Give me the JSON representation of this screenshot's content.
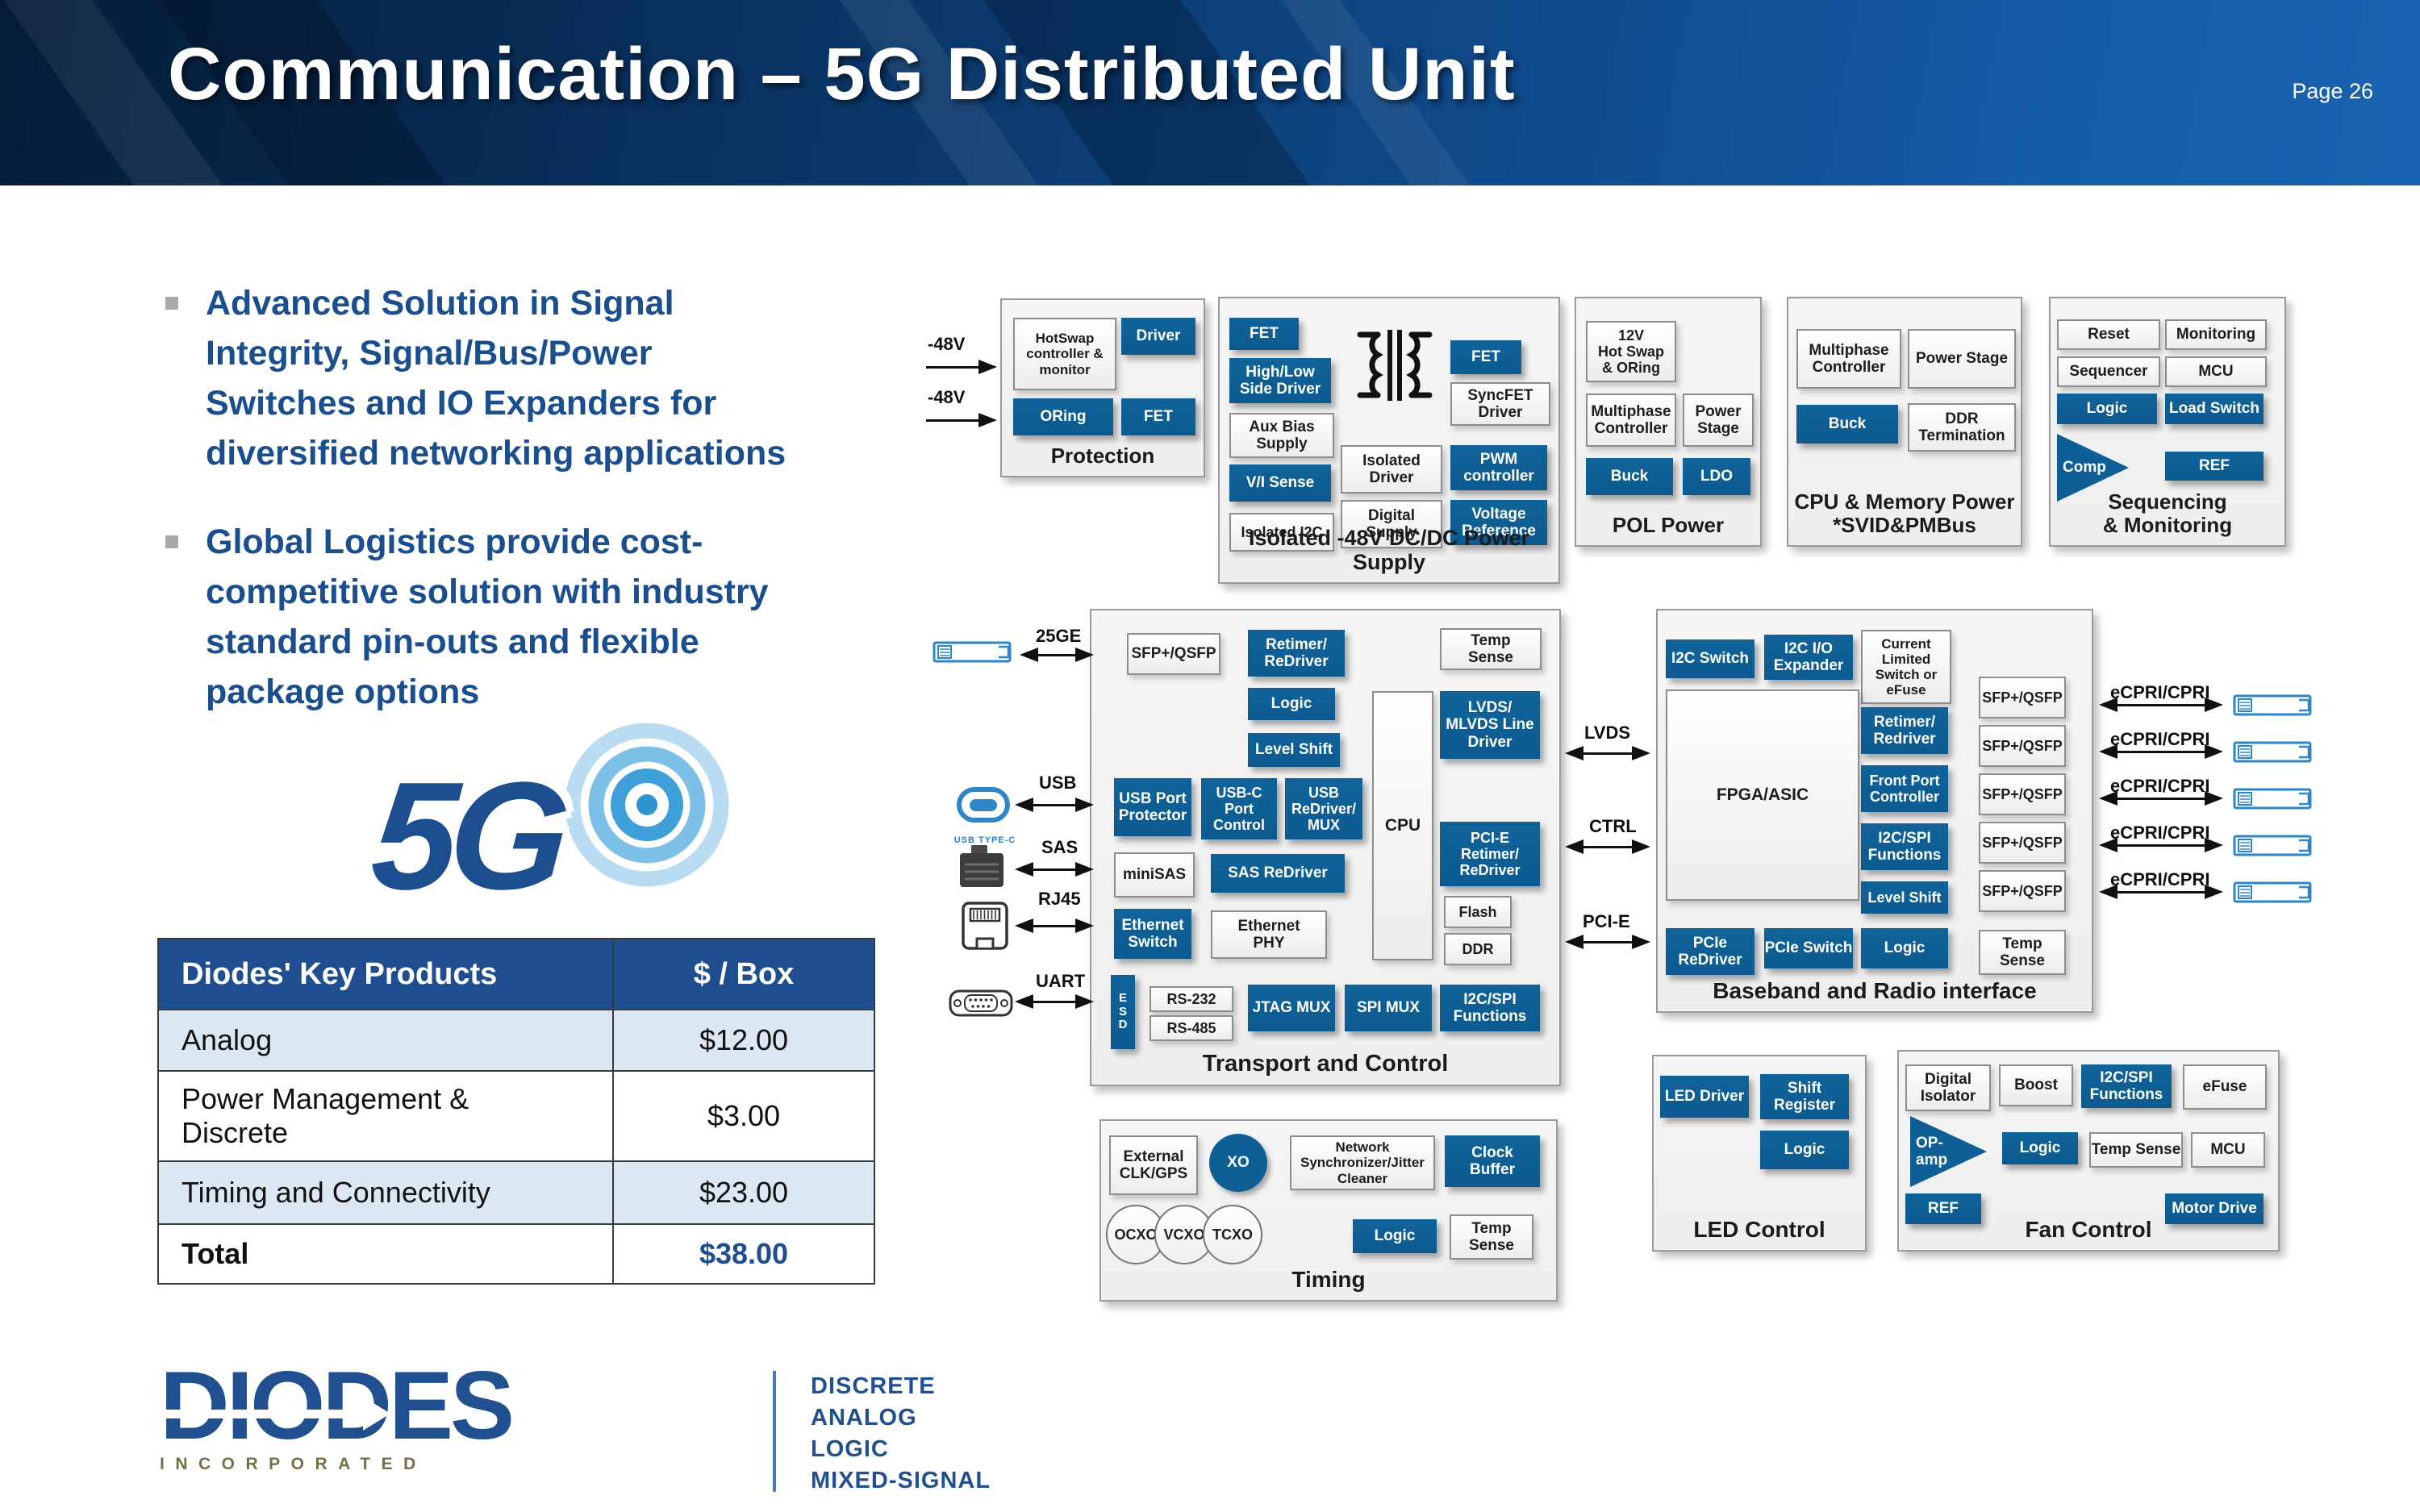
{
  "page": {
    "title": "Communication – 5G Distributed Unit",
    "page_label": "Page 26"
  },
  "bullets": [
    "Advanced Solution in Signal\nIntegrity, Signal/Bus/Power\nSwitches and IO Expanders for\ndiversified networking applications",
    "Global Logistics provide cost-\ncompetitive solution with industry\nstandard pin-outs and flexible\npackage options"
  ],
  "logo_5g": {
    "text": "5G"
  },
  "table": {
    "headers": [
      "Diodes' Key Products",
      "$ / Box"
    ],
    "rows": [
      [
        "Analog",
        "$12.00"
      ],
      [
        "Power Management &\nDiscrete",
        "$3.00"
      ],
      [
        "Timing and Connectivity",
        "$23.00"
      ]
    ],
    "total": [
      "Total",
      "$38.00"
    ]
  },
  "footer_logo": {
    "brand": "DIODES",
    "sub": "INCORPORATED",
    "tagline": "DISCRETE\nANALOG\nLOGIC\nMIXED-SIGNAL"
  },
  "colors": {
    "accent_blue": "#0d5f96",
    "table_header_blue": "#1f4e90",
    "bullet_text_blue": "#1a4e8e",
    "light_row_blue": "#dbe8f3",
    "header_band_navy": "#0a3261"
  },
  "diagram": {
    "inputs": [
      {
        "label": "-48V"
      },
      {
        "label": "-48V"
      }
    ],
    "left_ports": [
      {
        "label": "25GE"
      },
      {
        "label": "USB",
        "caption": "USB TYPE-C"
      },
      {
        "label": "SAS"
      },
      {
        "label": "RJ45"
      },
      {
        "label": "UART"
      }
    ],
    "bus_links": [
      {
        "label": "LVDS"
      },
      {
        "label": "CTRL"
      },
      {
        "label": "PCI-E"
      }
    ],
    "radio_links": [
      {
        "label": "eCPRI/CPRI"
      },
      {
        "label": "eCPRI/CPRI"
      },
      {
        "label": "eCPRI/CPRI"
      },
      {
        "label": "eCPRI/CPRI"
      },
      {
        "label": "eCPRI/CPRI"
      }
    ],
    "panels": {
      "protection": {
        "label": "Protection",
        "boxes": [
          "HotSwap controller & monitor",
          "Driver",
          "ORing",
          "FET"
        ]
      },
      "iso": {
        "label": "Isolated -48V DC/DC Power Supply",
        "boxes": [
          "FET",
          "High/Low Side Driver",
          "Aux Bias Supply",
          "V/I Sense",
          "Isolated I2C",
          "",
          "Isolated Driver",
          "Digital Supply",
          "FET",
          "SyncFET Driver",
          "PWM controller",
          "Voltage Reference"
        ]
      },
      "pol": {
        "label": "POL Power",
        "boxes": [
          "12V\nHot Swap\n& ORing",
          "Multiphase Controller",
          "Power Stage",
          "Buck",
          "LDO"
        ]
      },
      "cpu_mem": {
        "label": "CPU & Memory Power\n*SVID&PMBus",
        "boxes": [
          "Multiphase Controller",
          "Power Stage",
          "Buck",
          "DDR Termination"
        ]
      },
      "seq": {
        "label": "Sequencing\n& Monitoring",
        "boxes": [
          "Reset",
          "Monitoring",
          "Sequencer",
          "MCU",
          "Logic",
          "Load Switch",
          "Comp",
          "REF"
        ]
      },
      "transport": {
        "label": "Transport and Control",
        "boxes": [
          "SFP+/QSFP",
          "Retimer/\nReDriver",
          "Temp\nSense",
          "Logic",
          "Level Shift",
          "USB Port\nProtector",
          "USB-C\nPort\nControl",
          "USB\nReDriver/\nMUX",
          "CPU",
          "LVDS/\nMLVDS Line\nDriver",
          "PCI-E\nRetimer/\nReDriver",
          "Flash",
          "DDR",
          "miniSAS",
          "SAS ReDriver",
          "Ethernet\nSwitch",
          "Ethernet\nPHY",
          "ESD",
          "RS-232",
          "RS-485",
          "JTAG MUX",
          "SPI MUX",
          "I2C/SPI\nFunctions"
        ]
      },
      "baseband": {
        "label": "Baseband and Radio interface",
        "boxes": [
          "I2C Switch",
          "I2C I/O\nExpander",
          "Current\nLimited\nSwitch or\neFuse",
          "FPGA/ASIC",
          "Retimer/\nRedriver",
          "Front Port\nController",
          "I2C/SPI\nFunctions",
          "Level Shift",
          "PCIe\nReDriver",
          "PCIe Switch",
          "Logic",
          "SFP+/QSFP",
          "SFP+/QSFP",
          "SFP+/QSFP",
          "SFP+/QSFP",
          "SFP+/QSFP",
          "Temp\nSense"
        ]
      },
      "timing": {
        "label": "Timing",
        "boxes": [
          "External\nCLK/GPS",
          "XO",
          "Network\nSynchronizer/Jitter\nCleaner",
          "Clock\nBuffer",
          "OCXO",
          "VCXO",
          "TCXO",
          "Logic",
          "Temp\nSense"
        ]
      },
      "led": {
        "label": "LED Control",
        "boxes": [
          "LED Driver",
          "Shift\nRegister",
          "Logic"
        ]
      },
      "fan": {
        "label": "Fan Control",
        "boxes": [
          "Digital\nIsolator",
          "Boost",
          "I2C/SPI\nFunctions",
          "eFuse",
          "OP-amp",
          "Logic",
          "Temp Sense",
          "MCU",
          "REF",
          "Motor Drive"
        ]
      }
    }
  }
}
